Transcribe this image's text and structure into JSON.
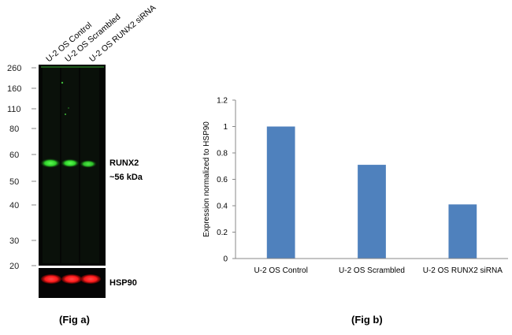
{
  "figure_a": {
    "lane_labels": [
      "U-2 OS Control",
      "U-2 OS Scrambled",
      "U-2 OS RUNX2 siRNA"
    ],
    "markers": [
      "260",
      "160",
      "110",
      "80",
      "60",
      "50",
      "40",
      "30",
      "20"
    ],
    "band_labels": {
      "runx2": "RUNX2",
      "size": "~56 kDa",
      "hsp90": "HSP90"
    },
    "colors": {
      "blot_bg": "#050705",
      "runx2_band": "#2fd02a",
      "hsp90_band": "#ff1a1a"
    },
    "caption": "(Fig a)"
  },
  "figure_b": {
    "caption": "(Fig b)"
  },
  "chart_data": {
    "type": "bar",
    "categories": [
      "U-2 OS Control",
      "U-2 OS Scrambled",
      "U-2 OS RUNX2 siRNA"
    ],
    "values": [
      1.0,
      0.71,
      0.41
    ],
    "ylabel": "Expression  normalized to HSP90",
    "xlabel": "",
    "ylim": [
      0,
      1.2
    ],
    "yticks": [
      "0",
      "0.2",
      "0.4",
      "0.6",
      "0.8",
      "1",
      "1.2"
    ],
    "bar_color": "#4f81bd",
    "grid": false,
    "legend": "none"
  }
}
